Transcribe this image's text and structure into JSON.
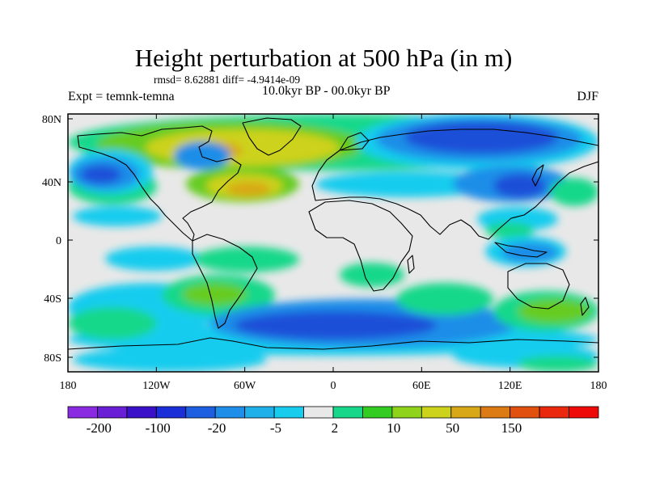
{
  "figure": {
    "title": "Height perturbation at 500 hPa (in m)",
    "stats": "rmsd= 8.62881 diff= -4.9414e-09",
    "experiment": "Expt = temnk-temna",
    "period": "10.0kyr BP - 00.0kyr BP",
    "season": "DJF"
  },
  "axes": {
    "lat_ticks": [
      "80N",
      "40N",
      "0",
      "40S",
      "80S"
    ],
    "lon_ticks": [
      "180",
      "120W",
      "60W",
      "0",
      "60E",
      "120E",
      "180"
    ]
  },
  "colorbar": {
    "labels": [
      "-200",
      "-100",
      "-20",
      "-5",
      "2",
      "10",
      "50",
      "150"
    ],
    "colors": [
      "#8a2be2",
      "#6a1fd6",
      "#3a10c8",
      "#1a2fd8",
      "#1d5fe0",
      "#1f8ee8",
      "#1fb0ea",
      "#18ccee",
      "#e8e8e8",
      "#17d88a",
      "#33cc22",
      "#8fd41a",
      "#cdd21a",
      "#d8a818",
      "#dc7a14",
      "#e25010",
      "#ea280e",
      "#ef0a0a"
    ]
  },
  "field_colors": {
    "strong_negative": "#1a4fd8",
    "negative": "#1f8ee8",
    "weak_negative": "#18ccee",
    "neutral": "#e8e8e8",
    "weak_positive": "#17d88a",
    "positive": "#66cc22",
    "strong_positive": "#cdd21a",
    "max_positive": "#d8a818"
  }
}
